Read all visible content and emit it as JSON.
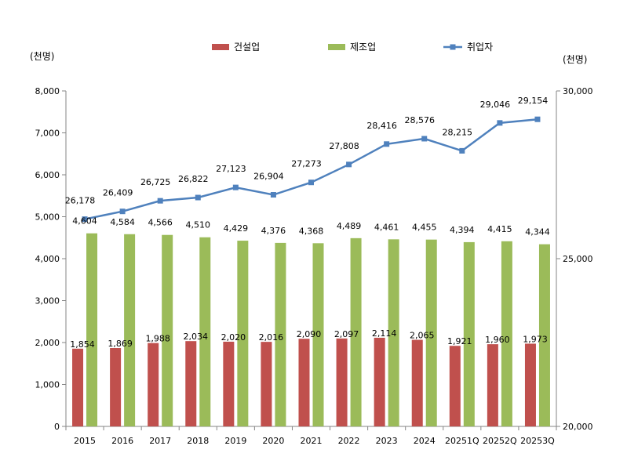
{
  "chart_data": {
    "type": "bar+line",
    "categories": [
      "2015",
      "2016",
      "2017",
      "2018",
      "2019",
      "2020",
      "2021",
      "2022",
      "2023",
      "2024",
      "20251Q",
      "20252Q",
      "20253Q"
    ],
    "series": [
      {
        "name": "건설업",
        "type": "bar",
        "axis": "left",
        "color": "#c0504d",
        "values": [
          1854,
          1869,
          1988,
          2034,
          2020,
          2016,
          2090,
          2097,
          2114,
          2065,
          1921,
          1960,
          1973
        ],
        "labels": [
          "1,854",
          "1,869",
          "1,988",
          "2,034",
          "2,020",
          "2,016",
          "2,090",
          "2,097",
          "2,114",
          "2,065",
          "1,921",
          "1,960",
          "1,973"
        ]
      },
      {
        "name": "제조업",
        "type": "bar",
        "axis": "left",
        "color": "#9bbb59",
        "values": [
          4604,
          4584,
          4566,
          4510,
          4429,
          4376,
          4368,
          4489,
          4461,
          4455,
          4394,
          4415,
          4344
        ],
        "labels": [
          "4,604",
          "4,584",
          "4,566",
          "4,510",
          "4,429",
          "4,376",
          "4,368",
          "4,489",
          "4,461",
          "4,455",
          "4,394",
          "4,415",
          "4,344"
        ]
      },
      {
        "name": "취업자",
        "type": "line",
        "axis": "right",
        "color": "#4f81bd",
        "values": [
          26178,
          26409,
          26725,
          26822,
          27123,
          26904,
          27273,
          27808,
          28416,
          28576,
          28215,
          29046,
          29154
        ],
        "labels": [
          "26,178",
          "26,409",
          "26,725",
          "26,822",
          "27,123",
          "26,904",
          "27,273",
          "27,808",
          "28,416",
          "28,576",
          "28,215",
          "29,046",
          "29,154"
        ]
      }
    ],
    "y_left": {
      "unit_label": "(천명)",
      "range": [
        0,
        8000
      ],
      "ticks": [
        0,
        1000,
        2000,
        3000,
        4000,
        5000,
        6000,
        7000,
        8000
      ],
      "tick_labels": [
        "0",
        "1,000",
        "2,000",
        "3,000",
        "4,000",
        "5,000",
        "6,000",
        "7,000",
        "8,000"
      ]
    },
    "y_right": {
      "unit_label": "(천명)",
      "range": [
        20000,
        30000
      ],
      "ticks": [
        20000,
        25000,
        30000
      ],
      "tick_labels": [
        "20,000",
        "25,000",
        "30,000"
      ]
    },
    "grid": false,
    "legend_position": "top-center"
  }
}
